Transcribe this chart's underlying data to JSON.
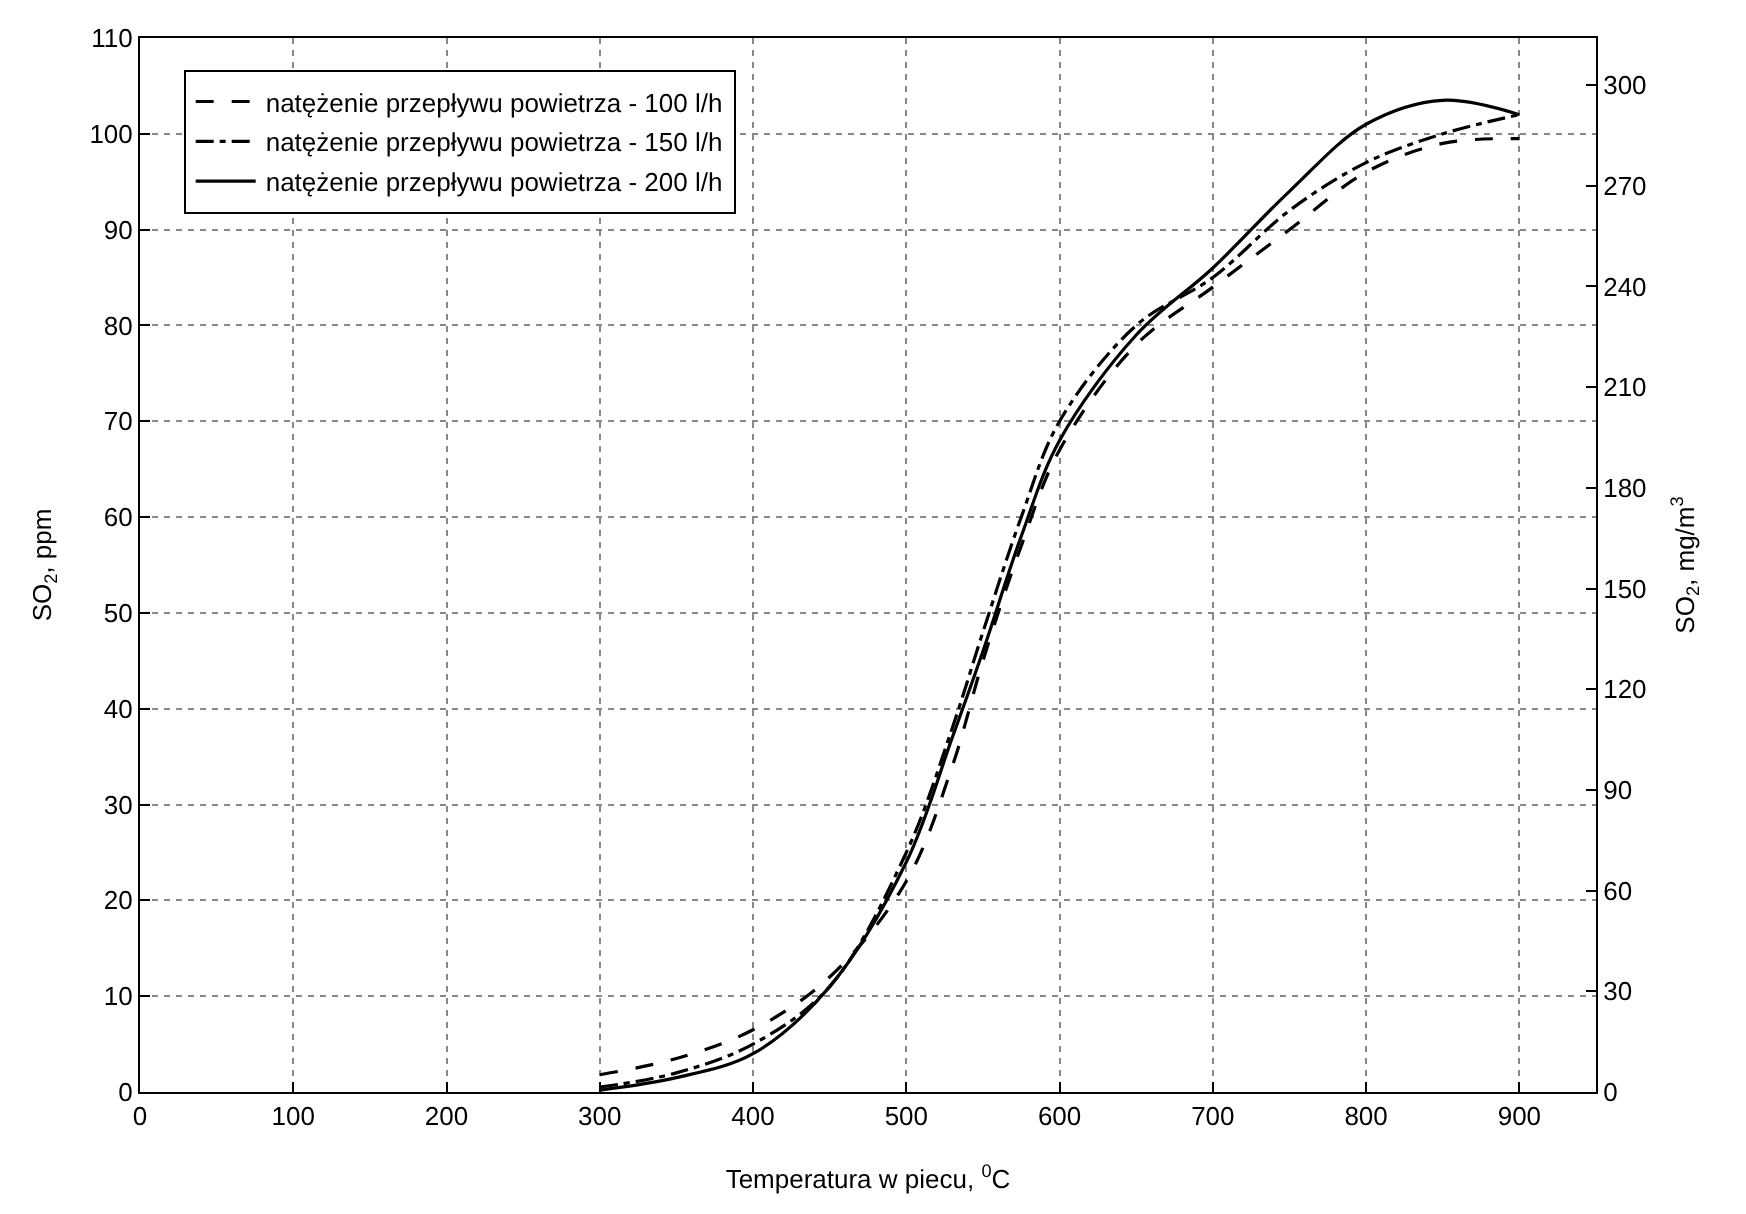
{
  "chart_data": {
    "type": "line",
    "xlabel": "Temperatura w piecu, $^{0}$C",
    "ylabel": "SO$_{2}$, ppm",
    "y2label": "SO$_{2}$, mg/m$^{3}$",
    "xlim": [
      0,
      950
    ],
    "xticks": [
      0,
      100,
      200,
      300,
      400,
      500,
      600,
      700,
      800,
      900
    ],
    "ylim": [
      0,
      110
    ],
    "yticks": [
      0,
      10,
      20,
      30,
      40,
      50,
      60,
      70,
      80,
      90,
      100,
      110
    ],
    "y2lim": [
      0,
      314
    ],
    "y2ticks": [
      0,
      30,
      60,
      90,
      120,
      150,
      180,
      210,
      240,
      270,
      300
    ],
    "grid": true,
    "legend": "top left",
    "series": [
      {
        "name": "natężenie przepływu powietrza - 100 l/h",
        "color": "#000000",
        "line_style": "dashed",
        "x": [
          300,
          350,
          400,
          450,
          500,
          530,
          550,
          575,
          600,
          650,
          700,
          750,
          800,
          850,
          900
        ],
        "values": [
          1.8,
          3.5,
          6.5,
          12,
          22,
          34,
          45,
          57,
          67,
          78,
          84,
          90,
          96,
          99,
          99.5
        ]
      },
      {
        "name": "natężenie przepływu powietrza - 150 l/h",
        "color": "#000000",
        "line_style": "dashdot",
        "x": [
          300,
          350,
          400,
          450,
          500,
          530,
          550,
          575,
          600,
          650,
          700,
          750,
          800,
          850,
          900
        ],
        "values": [
          0.5,
          2,
          5,
          11,
          25,
          38,
          48,
          60,
          70,
          80,
          85,
          92,
          97,
          100,
          102
        ]
      },
      {
        "name": "natężenie przepływu powietrza - 200 l/h",
        "color": "#000000",
        "line_style": "solid",
        "x": [
          300,
          350,
          400,
          450,
          500,
          530,
          550,
          575,
          600,
          650,
          700,
          750,
          800,
          850,
          900
        ],
        "values": [
          0.2,
          1.5,
          4,
          11,
          24,
          37,
          46,
          58,
          68,
          79,
          86,
          94,
          101,
          103.5,
          102
        ]
      }
    ]
  }
}
